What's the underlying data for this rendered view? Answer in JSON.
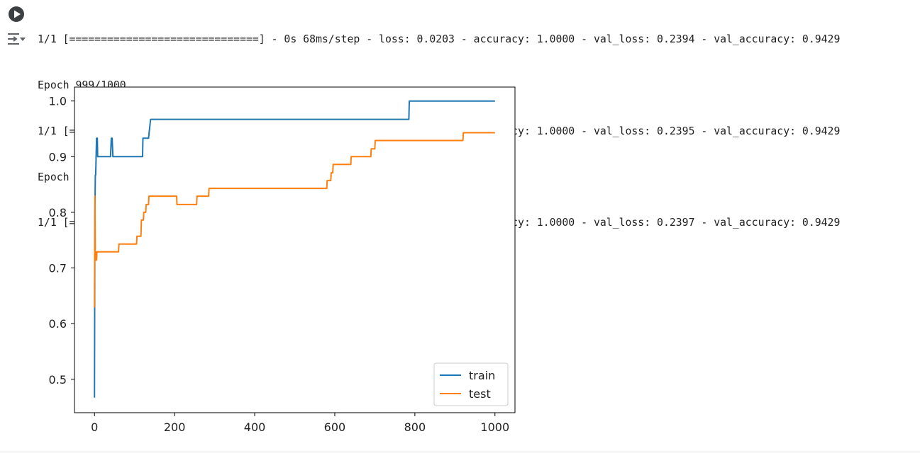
{
  "cell": {
    "run_icon": "play-circle-icon",
    "output_toggle_icon": "output-collapse-icon"
  },
  "output": {
    "lines": [
      "1/1 [==============================] - 0s 68ms/step - loss: 0.0203 - accuracy: 1.0000 - val_loss: 0.2394 - val_accuracy: 0.9429",
      "Epoch 999/1000",
      "1/1 [==============================] - 0s 61ms/step - loss: 0.0202 - accuracy: 1.0000 - val_loss: 0.2395 - val_accuracy: 0.9429",
      "Epoch 1000/1000",
      "1/1 [==============================] - 0s 66ms/step - loss: 0.0201 - accuracy: 1.0000 - val_loss: 0.2397 - val_accuracy: 0.9429"
    ]
  },
  "chart_data": {
    "type": "line",
    "title": "",
    "xlabel": "",
    "ylabel": "",
    "xlim": [
      -50,
      1050
    ],
    "ylim": [
      0.44,
      1.025
    ],
    "xticks": [
      0,
      200,
      400,
      600,
      800,
      1000
    ],
    "yticks": [
      0.5,
      0.6,
      0.7,
      0.8,
      0.9,
      1.0
    ],
    "ytick_labels": [
      "0.5",
      "0.6",
      "0.7",
      "0.8",
      "0.9",
      "1.0"
    ],
    "grid": false,
    "legend_position": "lower-right",
    "series": [
      {
        "name": "train",
        "color": "#1f77b4",
        "x": [
          0,
          1,
          2,
          3,
          4,
          5,
          7,
          8,
          20,
          40,
          42,
          44,
          46,
          120,
          121,
          135,
          140,
          785,
          786,
          1000
        ],
        "y": [
          0.467,
          0.8,
          0.867,
          0.867,
          0.9,
          0.933,
          0.933,
          0.9,
          0.9,
          0.9,
          0.933,
          0.933,
          0.9,
          0.9,
          0.933,
          0.933,
          0.967,
          0.967,
          1.0,
          1.0
        ]
      },
      {
        "name": "test",
        "color": "#ff7f0e",
        "x": [
          0,
          1,
          2,
          3,
          4,
          5,
          6,
          7,
          8,
          60,
          61,
          105,
          106,
          116,
          117,
          122,
          123,
          128,
          129,
          135,
          136,
          205,
          206,
          255,
          256,
          285,
          286,
          580,
          581,
          590,
          591,
          595,
          596,
          640,
          641,
          690,
          691,
          700,
          701,
          920,
          921,
          1000
        ],
        "y": [
          0.629,
          0.829,
          0.714,
          0.729,
          0.714,
          0.714,
          0.729,
          0.729,
          0.729,
          0.729,
          0.743,
          0.743,
          0.757,
          0.757,
          0.786,
          0.786,
          0.8,
          0.8,
          0.814,
          0.814,
          0.829,
          0.829,
          0.814,
          0.814,
          0.829,
          0.829,
          0.843,
          0.843,
          0.857,
          0.857,
          0.871,
          0.871,
          0.886,
          0.886,
          0.9,
          0.9,
          0.914,
          0.914,
          0.929,
          0.929,
          0.943,
          0.943
        ]
      }
    ]
  }
}
